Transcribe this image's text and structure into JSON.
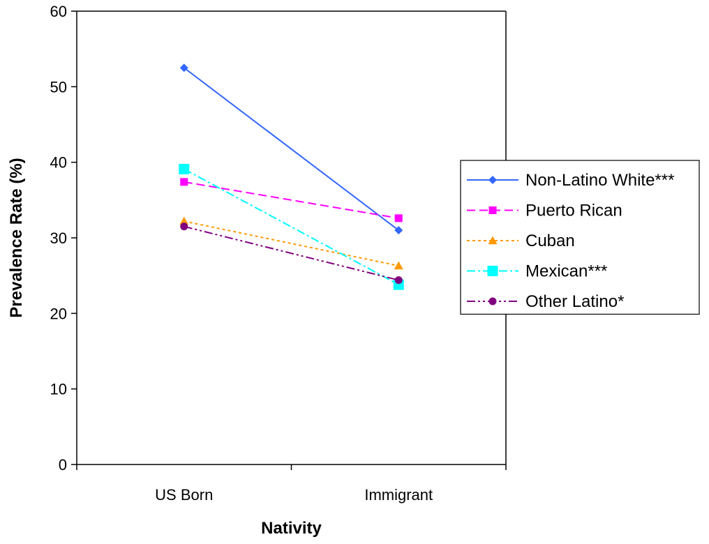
{
  "chart_data": {
    "type": "line",
    "title": "",
    "xlabel": "Nativity",
    "ylabel": "Prevalence Rate (%)",
    "categories": [
      "US Born",
      "Immigrant"
    ],
    "ylim": [
      0,
      60
    ],
    "yticks": [
      "0",
      "10",
      "20",
      "30",
      "40",
      "50",
      "60"
    ],
    "grid": false,
    "legend_position": "right",
    "series": [
      {
        "name": "Non-Latino White***",
        "values": [
          52.5,
          31.0
        ],
        "color": "#3366ff",
        "marker": "diamond",
        "dash": "solid"
      },
      {
        "name": "Puerto Rican",
        "values": [
          37.4,
          32.6
        ],
        "color": "#ff00ff",
        "marker": "square",
        "dash": "dashed"
      },
      {
        "name": "Cuban",
        "values": [
          32.2,
          26.3
        ],
        "color": "#ff9900",
        "marker": "triangle",
        "dash": "dotted"
      },
      {
        "name": "Mexican***",
        "values": [
          39.1,
          23.8
        ],
        "color": "#00ffff",
        "marker": "square-large",
        "dash": "dash-dot"
      },
      {
        "name": "Other Latino*",
        "values": [
          31.5,
          24.4
        ],
        "color": "#800080",
        "marker": "circle",
        "dash": "dash-dot-dot"
      }
    ]
  }
}
